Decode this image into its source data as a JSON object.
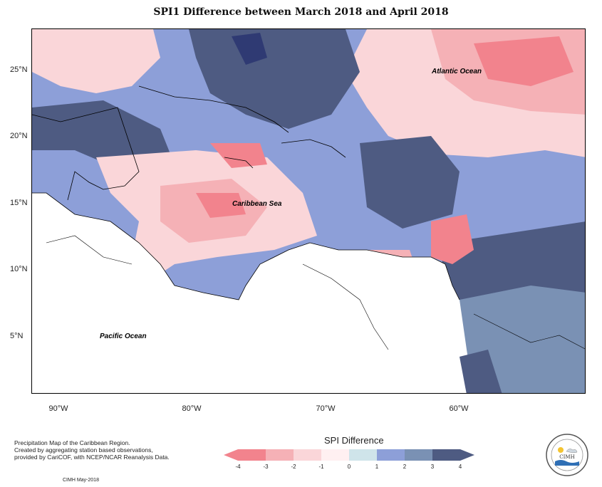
{
  "title": "SPI1 Difference between March 2018 and April 2018",
  "labels": {
    "atlantic": "Atlantic Ocean",
    "caribbean": "Caribbean Sea",
    "pacific": "Pacific Ocean"
  },
  "axes": {
    "y_ticks": [
      "25°N",
      "20°N",
      "15°N",
      "10°N",
      "5°N"
    ],
    "x_ticks": [
      "90°W",
      "80°W",
      "70°W",
      "60°W"
    ]
  },
  "legend": {
    "title": "SPI Difference",
    "ticks": [
      "-4",
      "-3",
      "-2",
      "-1",
      "0",
      "1",
      "2",
      "3",
      "4"
    ],
    "colors": [
      "#f2838d",
      "#f5b1b6",
      "#fad6d9",
      "#fff0f1",
      "#cfe4ea",
      "#8d9fd8",
      "#7a91b4",
      "#4e5b82"
    ]
  },
  "footnote": {
    "line1": "Precipitation Map of the Caribbean Region.",
    "line2": "Created by aggregating station based observations,",
    "line3": "provided by CariCOF, with NCEP/NCAR Reanalysis Data.",
    "credit": "CIMH May-2018"
  },
  "logo": {
    "text": "CIMH"
  }
}
